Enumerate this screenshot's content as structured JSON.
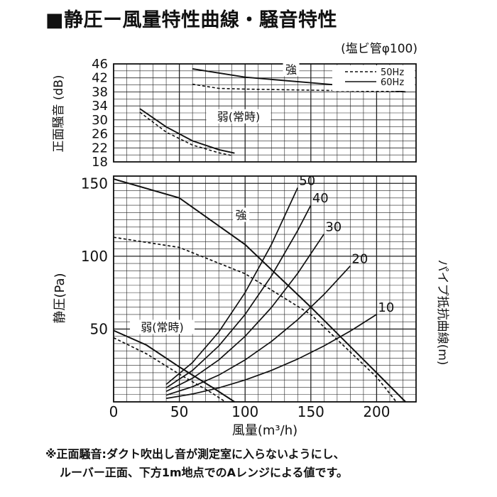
{
  "title": "■静圧ー風量特性曲線・騒音特性",
  "subtitle": "(塩ビ管φ100)",
  "notes": [
    "※正面騒音:ダクト吹出し音が測定室に入らないようにし、",
    "ルーバー正面、下方1m地点でのAレンジによる値です。"
  ],
  "chart_data": [
    {
      "type": "line",
      "name": "noise",
      "ylabel": "正面騒音 (dB)",
      "xlim": [
        0,
        230
      ],
      "ylim": [
        18,
        46
      ],
      "yticks": [
        18,
        22,
        26,
        30,
        34,
        38,
        42,
        46
      ],
      "legend": {
        "position": "top-right",
        "entries": [
          {
            "label": "50Hz",
            "style": "dashed"
          },
          {
            "label": "60Hz",
            "style": "solid"
          }
        ]
      },
      "annotations": [
        {
          "text": "強",
          "x": 135,
          "y": 43.5
        },
        {
          "text": "弱(常時)",
          "x": 95,
          "y": 30
        }
      ],
      "series": [
        {
          "mode": "強",
          "freq": "60Hz",
          "style": "solid",
          "x": [
            60,
            100,
            150,
            200,
            222
          ],
          "y": [
            44.6,
            42.2,
            40.6,
            39.0,
            38.0
          ]
        },
        {
          "mode": "強",
          "freq": "50Hz",
          "style": "dashed",
          "x": [
            60,
            80,
            100,
            150,
            200,
            222
          ],
          "y": [
            40.2,
            39.0,
            38.8,
            38.5,
            38.2,
            38.0
          ]
        },
        {
          "mode": "弱(常時)",
          "freq": "60Hz",
          "style": "solid",
          "x": [
            20,
            40,
            60,
            80,
            92
          ],
          "y": [
            33.2,
            28.0,
            24.0,
            21.5,
            20.5
          ]
        },
        {
          "mode": "弱(常時)",
          "freq": "50Hz",
          "style": "dashed",
          "x": [
            20,
            40,
            60,
            80,
            90
          ],
          "y": [
            32.2,
            26.5,
            22.8,
            20.6,
            19.8
          ]
        }
      ]
    },
    {
      "type": "line",
      "name": "pressure",
      "xlabel": "風量(m³/h)",
      "ylabel": "静圧(Pa)",
      "y2label": "パイプ抵抗曲線(m)",
      "xlim": [
        0,
        230
      ],
      "ylim": [
        0,
        155
      ],
      "xticks": [
        0,
        50,
        100,
        150,
        200
      ],
      "yticks": [
        50,
        100,
        150
      ],
      "annotations": [
        {
          "text": "強",
          "x": 97,
          "y": 126
        },
        {
          "text": "弱(常時)",
          "x": 37,
          "y": 49
        }
      ],
      "series": [
        {
          "mode": "強",
          "freq": "60Hz",
          "style": "solid",
          "x": [
            0,
            50,
            100,
            150,
            200,
            222
          ],
          "y": [
            153,
            140,
            108,
            65,
            20,
            0
          ]
        },
        {
          "mode": "強",
          "freq": "50Hz",
          "style": "dashed",
          "x": [
            0,
            50,
            100,
            150,
            200,
            215
          ],
          "y": [
            113,
            106,
            88,
            60,
            17,
            0
          ]
        },
        {
          "mode": "弱(常時)",
          "freq": "60Hz",
          "style": "solid",
          "x": [
            0,
            25,
            50,
            75,
            92
          ],
          "y": [
            49,
            39,
            24,
            10,
            0
          ]
        },
        {
          "mode": "弱(常時)",
          "freq": "50Hz",
          "style": "dashed",
          "x": [
            0,
            25,
            50,
            75,
            85
          ],
          "y": [
            44,
            33,
            19,
            6,
            0
          ]
        }
      ],
      "pipe_resistance": [
        {
          "label": "50",
          "x": [
            40,
            60,
            80,
            100,
            120,
            140
          ],
          "y": [
            12.0,
            27.0,
            48.0,
            75.0,
            108.0,
            147.0
          ]
        },
        {
          "label": "40",
          "x": [
            40,
            60,
            80,
            100,
            120,
            140,
            150
          ],
          "y": [
            9.6,
            21.6,
            38.4,
            60.0,
            86.4,
            117.6,
            135.0
          ]
        },
        {
          "label": "30",
          "x": [
            40,
            60,
            80,
            100,
            120,
            140,
            160
          ],
          "y": [
            7.2,
            16.2,
            28.8,
            45.0,
            64.8,
            88.2,
            115.2
          ]
        },
        {
          "label": "20",
          "x": [
            40,
            60,
            80,
            100,
            120,
            140,
            160,
            180
          ],
          "y": [
            4.6,
            10.4,
            18.4,
            28.8,
            41.5,
            56.4,
            73.7,
            93.3
          ]
        },
        {
          "label": "10",
          "x": [
            40,
            60,
            80,
            100,
            120,
            140,
            160,
            180,
            200
          ],
          "y": [
            2.4,
            5.4,
            9.6,
            15.0,
            21.6,
            29.4,
            38.4,
            48.6,
            60.0
          ]
        }
      ]
    }
  ]
}
